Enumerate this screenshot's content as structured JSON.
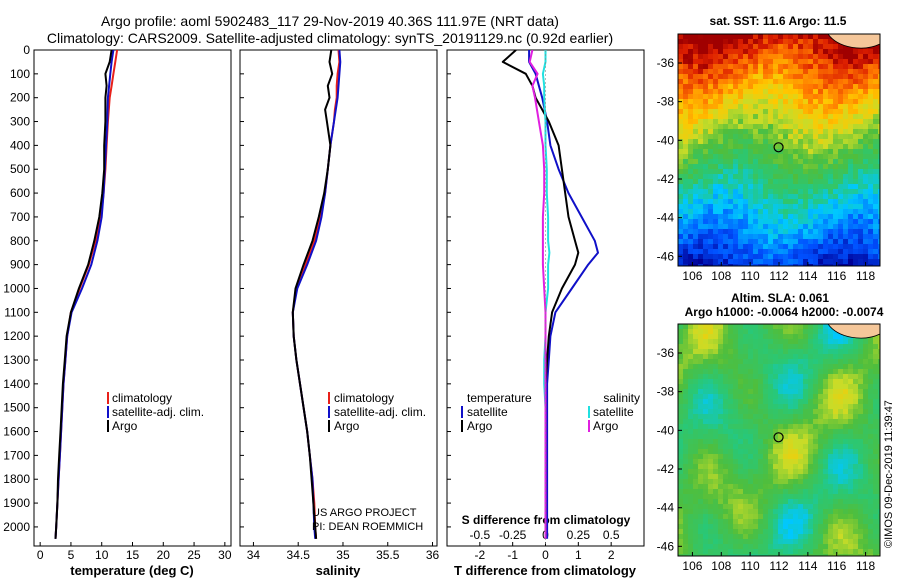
{
  "header": {
    "line1": "Argo profile: aoml 5902483_117 29-Nov-2019 40.36S 111.97E (NRT data)",
    "line2": "Climatology: CARS2009. Satellite-adjusted climatology: synTS_20191129.nc (0.92d earlier)"
  },
  "credits": {
    "project": "US ARGO PROJECT",
    "pi": "PI: DEAN ROEMMICH",
    "imos": "©IMOS 09-Dec-2019 11:39:47"
  },
  "colors": {
    "climatology": "#e8201a",
    "satellite": "#1010c8",
    "argo": "#000000",
    "satellite_s": "#20e0e0",
    "argo_s": "#e020e0"
  },
  "chart_data": [
    {
      "id": "temperature",
      "type": "line",
      "xlabel": "temperature (deg C)",
      "ylabel": "",
      "xlim": [
        -1,
        31
      ],
      "ylim": [
        0,
        2080
      ],
      "xticks": [
        0,
        5,
        10,
        15,
        20,
        25,
        30
      ],
      "yticks": [
        0,
        100,
        200,
        300,
        400,
        500,
        600,
        700,
        800,
        900,
        1000,
        1100,
        1200,
        1300,
        1400,
        1500,
        1600,
        1700,
        1800,
        1900,
        2000
      ],
      "ytick_labels": [
        "0",
        "100",
        "200",
        "300",
        "400",
        "500",
        "600",
        "700",
        "800",
        "900",
        "1000",
        "1100",
        "1200",
        "1300",
        "1400",
        "1500",
        "1600",
        "1700",
        "1800",
        "1900",
        "2000"
      ],
      "legend_labels": [
        "climatology",
        "satellite-adj. clim.",
        "Argo"
      ],
      "depth": [
        0,
        50,
        100,
        150,
        200,
        300,
        400,
        500,
        600,
        700,
        800,
        900,
        1000,
        1100,
        1200,
        1300,
        1400,
        1500,
        1600,
        1700,
        1800,
        1900,
        2000,
        2050
      ],
      "series": [
        {
          "name": "climatology",
          "values": [
            12.5,
            12.2,
            11.9,
            11.6,
            11.3,
            11.0,
            10.8,
            10.6,
            10.3,
            9.9,
            9.0,
            7.9,
            6.4,
            5.0,
            4.4,
            4.1,
            3.8,
            3.6,
            3.4,
            3.2,
            3.0,
            2.8,
            2.6,
            2.5
          ]
        },
        {
          "name": "satellite-adj. clim.",
          "values": [
            11.9,
            11.6,
            11.4,
            11.2,
            11.0,
            10.9,
            10.7,
            10.5,
            10.3,
            10.0,
            9.3,
            8.3,
            6.8,
            5.1,
            4.4,
            4.1,
            3.8,
            3.6,
            3.4,
            3.2,
            3.0,
            2.8,
            2.6,
            2.5
          ]
        },
        {
          "name": "Argo",
          "values": [
            11.6,
            11.3,
            10.6,
            10.8,
            10.6,
            10.6,
            10.4,
            10.4,
            10.1,
            9.6,
            8.8,
            7.8,
            6.3,
            5.0,
            4.3,
            4.0,
            3.7,
            3.5,
            3.3,
            3.1,
            2.9,
            2.8,
            2.6,
            2.5
          ]
        }
      ]
    },
    {
      "id": "salinity",
      "type": "line",
      "xlabel": "salinity",
      "xlim": [
        33.85,
        36.05
      ],
      "ylim": [
        0,
        2080
      ],
      "xticks": [
        34,
        34.5,
        35,
        35.5,
        36
      ],
      "xtick_labels": [
        "34",
        "34.5",
        "35",
        "35.5",
        "36"
      ],
      "legend_labels": [
        "climatology",
        "satellite-adj. clim.",
        "Argo"
      ],
      "depth": [
        0,
        50,
        100,
        150,
        200,
        250,
        300,
        400,
        500,
        600,
        700,
        800,
        900,
        1000,
        1100,
        1200,
        1300,
        1400,
        1500,
        1600,
        1700,
        1800,
        1900,
        2000,
        2050
      ],
      "series": [
        {
          "name": "climatology",
          "values": [
            34.95,
            34.96,
            34.94,
            34.93,
            34.93,
            34.91,
            34.9,
            34.86,
            34.83,
            34.8,
            34.75,
            34.68,
            34.58,
            34.48,
            34.44,
            34.45,
            34.48,
            34.52,
            34.56,
            34.6,
            34.63,
            34.66,
            34.68,
            34.69,
            34.7
          ]
        },
        {
          "name": "satellite-adj. clim.",
          "values": [
            34.96,
            34.97,
            34.96,
            34.95,
            34.94,
            34.92,
            34.9,
            34.86,
            34.83,
            34.8,
            34.76,
            34.7,
            34.6,
            34.49,
            34.44,
            34.45,
            34.48,
            34.52,
            34.56,
            34.6,
            34.63,
            34.66,
            34.67,
            34.68,
            34.69
          ]
        },
        {
          "name": "Argo",
          "values": [
            34.87,
            34.85,
            34.88,
            34.83,
            34.85,
            34.8,
            34.82,
            34.86,
            34.83,
            34.79,
            34.73,
            34.66,
            34.56,
            34.47,
            34.44,
            34.45,
            34.48,
            34.52,
            34.56,
            34.6,
            34.63,
            34.65,
            34.67,
            34.69,
            34.7
          ]
        }
      ]
    },
    {
      "id": "difference",
      "type": "line",
      "xlabel": "T difference from climatology",
      "xlabel_top": "S difference from climatology",
      "xlim": [
        -3,
        3
      ],
      "ylim": [
        0,
        2080
      ],
      "xticks": [
        -2,
        -1,
        0,
        1,
        2
      ],
      "xtick_labels": [
        "-2",
        "-1",
        "0",
        "1",
        "2"
      ],
      "s_xticks": [
        -0.5,
        -0.25,
        0,
        0.25,
        0.5
      ],
      "s_xtick_labels": [
        "-0.5",
        "-0.25",
        "0",
        "0.25",
        "0.5"
      ],
      "s_scale": 4,
      "legend_left_title": "temperature",
      "legend_right_title": "salinity",
      "legend_labels": [
        "satellite",
        "Argo"
      ],
      "depth": [
        0,
        50,
        100,
        150,
        200,
        300,
        400,
        500,
        600,
        700,
        800,
        850,
        900,
        1000,
        1100,
        1200,
        1300,
        1400,
        1500,
        1600,
        1700,
        1800,
        1900,
        2000,
        2050
      ],
      "series": [
        {
          "name": "T satellite",
          "values": [
            -0.5,
            -0.5,
            -0.3,
            -0.2,
            -0.1,
            0.05,
            0.15,
            0.4,
            0.7,
            1.1,
            1.5,
            1.6,
            1.3,
            0.8,
            0.3,
            0.15,
            0.1,
            0.05,
            0.05,
            0.05,
            0.05,
            0.05,
            0.05,
            0.05,
            0.05
          ]
        },
        {
          "name": "T Argo",
          "values": [
            -0.9,
            -1.3,
            -0.6,
            -0.4,
            -0.3,
            0.1,
            0.4,
            0.5,
            0.6,
            0.7,
            0.9,
            1.0,
            0.9,
            0.5,
            0.2,
            0.1,
            0.05,
            0.0,
            0.0,
            0.0,
            0.0,
            0.0,
            0.0,
            0.0,
            0.0
          ]
        },
        {
          "name": "S satellite",
          "values": [
            0.0,
            0.0,
            -0.02,
            -0.01,
            -0.01,
            0.0,
            0.0,
            0.01,
            0.01,
            0.02,
            0.02,
            0.03,
            0.02,
            0.02,
            0.0,
            0.0,
            -0.01,
            -0.01,
            0.0,
            0.0,
            0.0,
            0.0,
            0.0,
            0.0,
            0.0
          ]
        },
        {
          "name": "S Argo",
          "values": [
            -0.1,
            -0.12,
            -0.06,
            -0.1,
            -0.08,
            -0.05,
            -0.02,
            -0.01,
            -0.01,
            -0.02,
            -0.02,
            -0.02,
            -0.02,
            -0.01,
            0.0,
            0.0,
            0.0,
            0.0,
            0.0,
            0.0,
            0.0,
            0.0,
            0.0,
            0.0,
            0.0
          ]
        }
      ]
    },
    {
      "id": "sst-map",
      "type": "heatmap",
      "title": "sat. SST: 11.6 Argo: 11.5",
      "xticks": [
        106,
        108,
        110,
        112,
        114,
        116,
        118
      ],
      "xtick_labels": [
        "106",
        "108",
        "110",
        "112",
        "114",
        "116",
        "118"
      ],
      "yticks": [
        -36,
        -38,
        -40,
        -42,
        -44,
        -46
      ],
      "ytick_labels": [
        "-36",
        "-38",
        "-40",
        "-42",
        "-44",
        "-46"
      ],
      "xlim": [
        105,
        119
      ],
      "ylim": [
        -46.5,
        -34.5
      ],
      "argo_position": {
        "lon": 111.97,
        "lat": -40.36
      }
    },
    {
      "id": "sla-map",
      "type": "heatmap",
      "title": "Altim. SLA: 0.061",
      "subtitle": "Argo h1000: -0.0064 h2000: -0.0074",
      "xticks": [
        106,
        108,
        110,
        112,
        114,
        116,
        118
      ],
      "xtick_labels": [
        "106",
        "108",
        "110",
        "112",
        "114",
        "116",
        "118"
      ],
      "yticks": [
        -36,
        -38,
        -40,
        -42,
        -44,
        -46
      ],
      "ytick_labels": [
        "-36",
        "-38",
        "-40",
        "-42",
        "-44",
        "-46"
      ],
      "xlim": [
        105,
        119
      ],
      "ylim": [
        -46.5,
        -34.5
      ],
      "argo_position": {
        "lon": 111.97,
        "lat": -40.36
      }
    }
  ]
}
